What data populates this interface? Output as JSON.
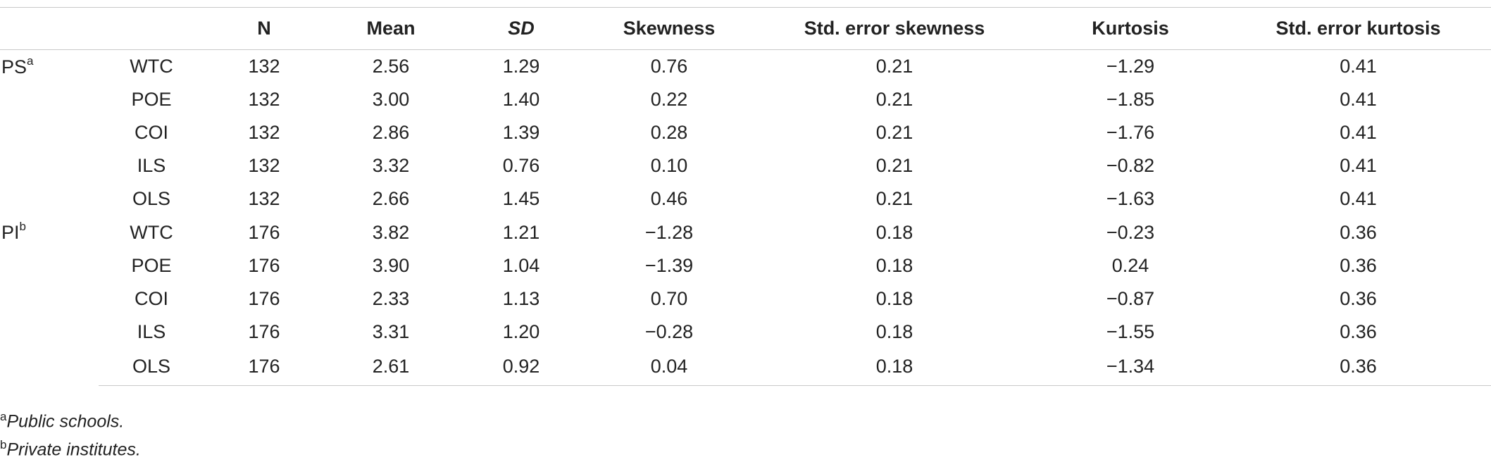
{
  "table": {
    "columns": [
      "",
      "",
      "N",
      "Mean",
      "SD",
      "Skewness",
      "Std. error skewness",
      "Kurtosis",
      "Std. error kurtosis"
    ],
    "groups": [
      {
        "label": "PS",
        "sup": "a",
        "rows": [
          {
            "var": "WTC",
            "n": "132",
            "mean": "2.56",
            "sd": "1.29",
            "skew": "0.76",
            "se_skew": "0.21",
            "kurt": "−1.29",
            "se_kurt": "0.41"
          },
          {
            "var": "POE",
            "n": "132",
            "mean": "3.00",
            "sd": "1.40",
            "skew": "0.22",
            "se_skew": "0.21",
            "kurt": "−1.85",
            "se_kurt": "0.41"
          },
          {
            "var": "COI",
            "n": "132",
            "mean": "2.86",
            "sd": "1.39",
            "skew": "0.28",
            "se_skew": "0.21",
            "kurt": "−1.76",
            "se_kurt": "0.41"
          },
          {
            "var": "ILS",
            "n": "132",
            "mean": "3.32",
            "sd": "0.76",
            "skew": "0.10",
            "se_skew": "0.21",
            "kurt": "−0.82",
            "se_kurt": "0.41"
          },
          {
            "var": "OLS",
            "n": "132",
            "mean": "2.66",
            "sd": "1.45",
            "skew": "0.46",
            "se_skew": "0.21",
            "kurt": "−1.63",
            "se_kurt": "0.41"
          }
        ]
      },
      {
        "label": "PI",
        "sup": "b",
        "rows": [
          {
            "var": "WTC",
            "n": "176",
            "mean": "3.82",
            "sd": "1.21",
            "skew": "−1.28",
            "se_skew": "0.18",
            "kurt": "−0.23",
            "se_kurt": "0.36"
          },
          {
            "var": "POE",
            "n": "176",
            "mean": "3.90",
            "sd": "1.04",
            "skew": "−1.39",
            "se_skew": "0.18",
            "kurt": "0.24",
            "se_kurt": "0.36"
          },
          {
            "var": "COI",
            "n": "176",
            "mean": "2.33",
            "sd": "1.13",
            "skew": "0.70",
            "se_skew": "0.18",
            "kurt": "−0.87",
            "se_kurt": "0.36"
          },
          {
            "var": "ILS",
            "n": "176",
            "mean": "3.31",
            "sd": "1.20",
            "skew": "−0.28",
            "se_skew": "0.18",
            "kurt": "−1.55",
            "se_kurt": "0.36"
          },
          {
            "var": "OLS",
            "n": "176",
            "mean": "2.61",
            "sd": "0.92",
            "skew": "0.04",
            "se_skew": "0.18",
            "kurt": "−1.34",
            "se_kurt": "0.36"
          }
        ]
      }
    ]
  },
  "footnotes": [
    {
      "mark": "a",
      "text": "Public schools."
    },
    {
      "mark": "b",
      "text": "Private institutes."
    }
  ]
}
